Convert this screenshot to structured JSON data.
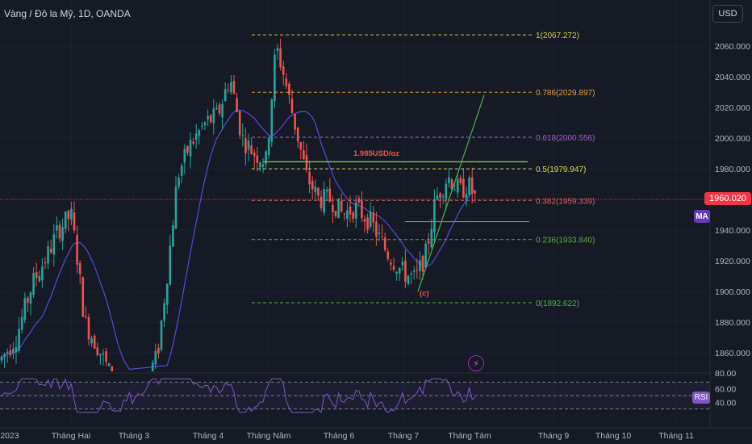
{
  "symbol": {
    "title": "Vàng / Đô la Mỹ, 1D, OANDA"
  },
  "currency_button": "USD",
  "last_price": "1960.020",
  "ma_badge": "MA",
  "rsi_badge": "RSI",
  "colors": {
    "up": "#26a69a",
    "down": "#ef5350",
    "ma": "#5b48d9",
    "rsi": "#7e57c2",
    "price_line": "#f23645"
  },
  "chart_data": {
    "type": "candlestick",
    "ylim": [
      1840,
      2080
    ],
    "price_ticks": [
      "1860.000",
      "1880.000",
      "1900.000",
      "1920.000",
      "1940.000",
      "1960.000",
      "1980.000",
      "2000.000",
      "2020.000",
      "2040.000",
      "2060.000"
    ],
    "x_labels": [
      "2023",
      "Tháng Hai",
      "Tháng 3",
      "Tháng 4",
      "Tháng Năm",
      "Tháng 6",
      "Tháng 7",
      "Tháng Tám",
      "Tháng 9",
      "Tháng 10",
      "Tháng 11"
    ],
    "fib_levels": [
      {
        "label": "1(2067.272)",
        "value": 2067.272,
        "color": "#d4c94a"
      },
      {
        "label": "0.786(2029.897)",
        "value": 2029.897,
        "color": "#e0a13a"
      },
      {
        "label": "0.618(2000.556)",
        "value": 2000.556,
        "color": "#a05cc9"
      },
      {
        "label": "0.5(1979.947)",
        "value": 1979.947,
        "color": "#e0d84a"
      },
      {
        "label": "0.382(1959.339)",
        "value": 1959.339,
        "color": "#d46060"
      },
      {
        "label": "0.236(1933.840)",
        "value": 1933.84,
        "color": "#5fa83a"
      },
      {
        "label": "0(1892.622)",
        "value": 1892.622,
        "color": "#4caf50"
      }
    ],
    "annotations": [
      {
        "text": "1.985USD/oz",
        "color": "#ef5350"
      },
      {
        "text": "(c)",
        "color": "#ef5350"
      }
    ],
    "rsi": {
      "ylim": [
        20,
        80
      ],
      "ticks": [
        "60.00",
        "40.00"
      ],
      "bands": [
        70,
        50,
        30
      ]
    }
  }
}
